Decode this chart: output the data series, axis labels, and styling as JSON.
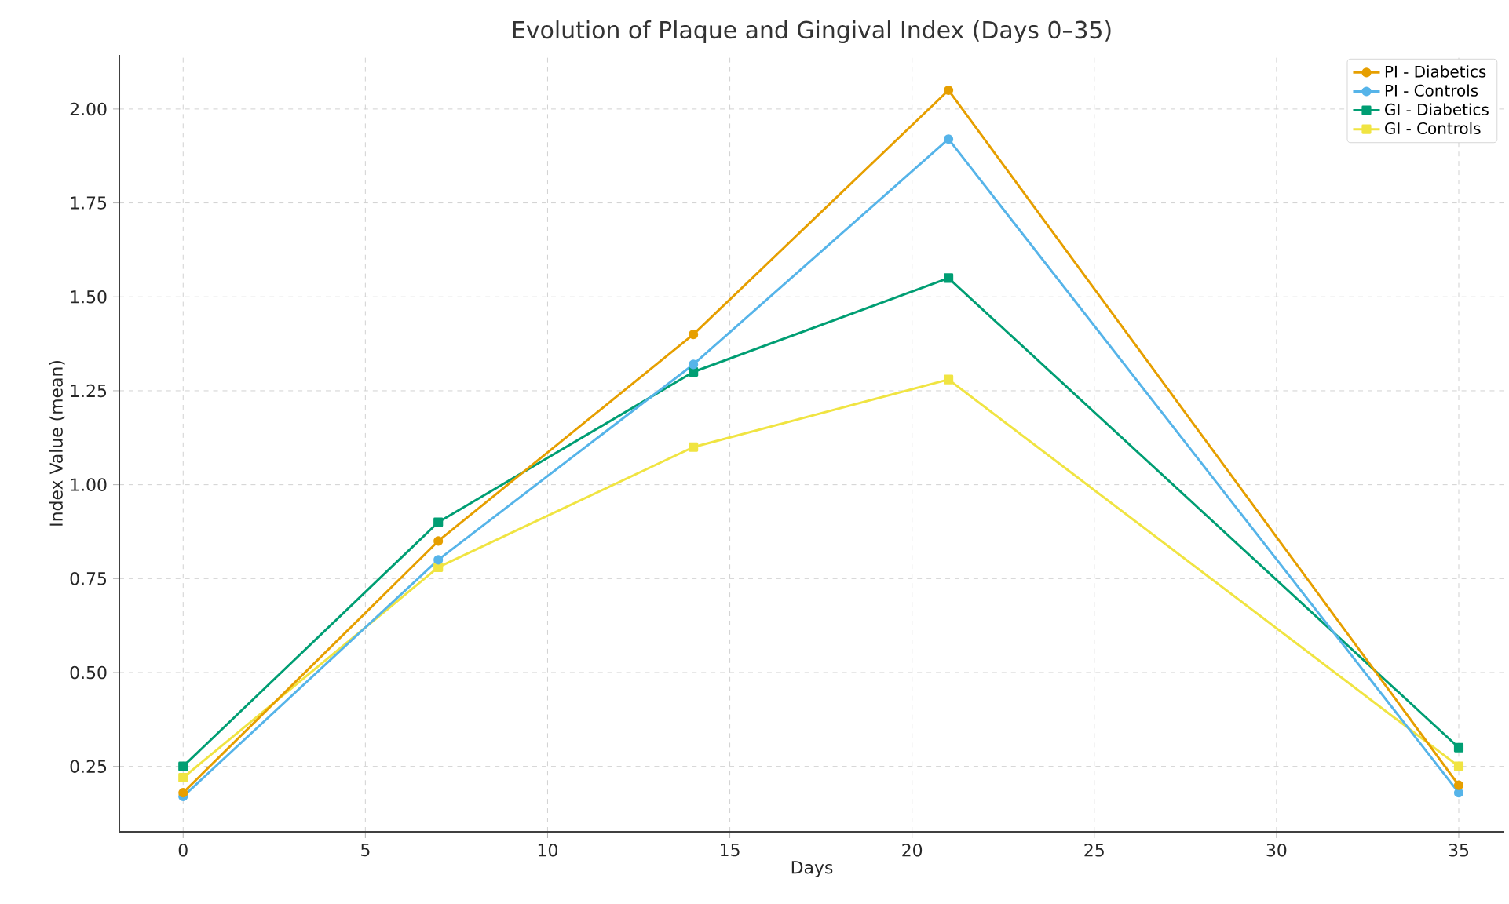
{
  "chart_data": {
    "type": "line",
    "title": "Evolution of Plaque and Gingival Index (Days 0–35)",
    "xlabel": "Days",
    "ylabel": "Index Value (mean)",
    "x": [
      0,
      7,
      14,
      21,
      35
    ],
    "series": [
      {
        "name": "PI - Diabetics",
        "color": "#e69f00",
        "marker": "circle",
        "values": [
          0.18,
          0.85,
          1.4,
          2.05,
          0.2
        ]
      },
      {
        "name": "PI - Controls",
        "color": "#56b4e9",
        "marker": "circle",
        "values": [
          0.17,
          0.8,
          1.32,
          1.92,
          0.18
        ]
      },
      {
        "name": "GI - Diabetics",
        "color": "#009e73",
        "marker": "square",
        "values": [
          0.25,
          0.9,
          1.3,
          1.55,
          0.3
        ]
      },
      {
        "name": "GI - Controls",
        "color": "#f0e442",
        "marker": "square",
        "values": [
          0.22,
          0.78,
          1.1,
          1.28,
          0.25
        ]
      }
    ],
    "xlim": [
      -1.75,
      36.25
    ],
    "ylim": [
      0.076,
      2.144
    ],
    "xticks": [
      0,
      5,
      10,
      15,
      20,
      25,
      30,
      35
    ],
    "yticks": [
      {
        "value": 0.25,
        "label": "0.25"
      },
      {
        "value": 0.5,
        "label": "0.50"
      },
      {
        "value": 0.75,
        "label": "0.75"
      },
      {
        "value": 1.0,
        "label": "1.00"
      },
      {
        "value": 1.25,
        "label": "1.25"
      },
      {
        "value": 1.5,
        "label": "1.50"
      },
      {
        "value": 1.75,
        "label": "1.75"
      },
      {
        "value": 2.0,
        "label": "2.00"
      }
    ],
    "grid": true,
    "legend": "top right",
    "line_style": "solid"
  }
}
